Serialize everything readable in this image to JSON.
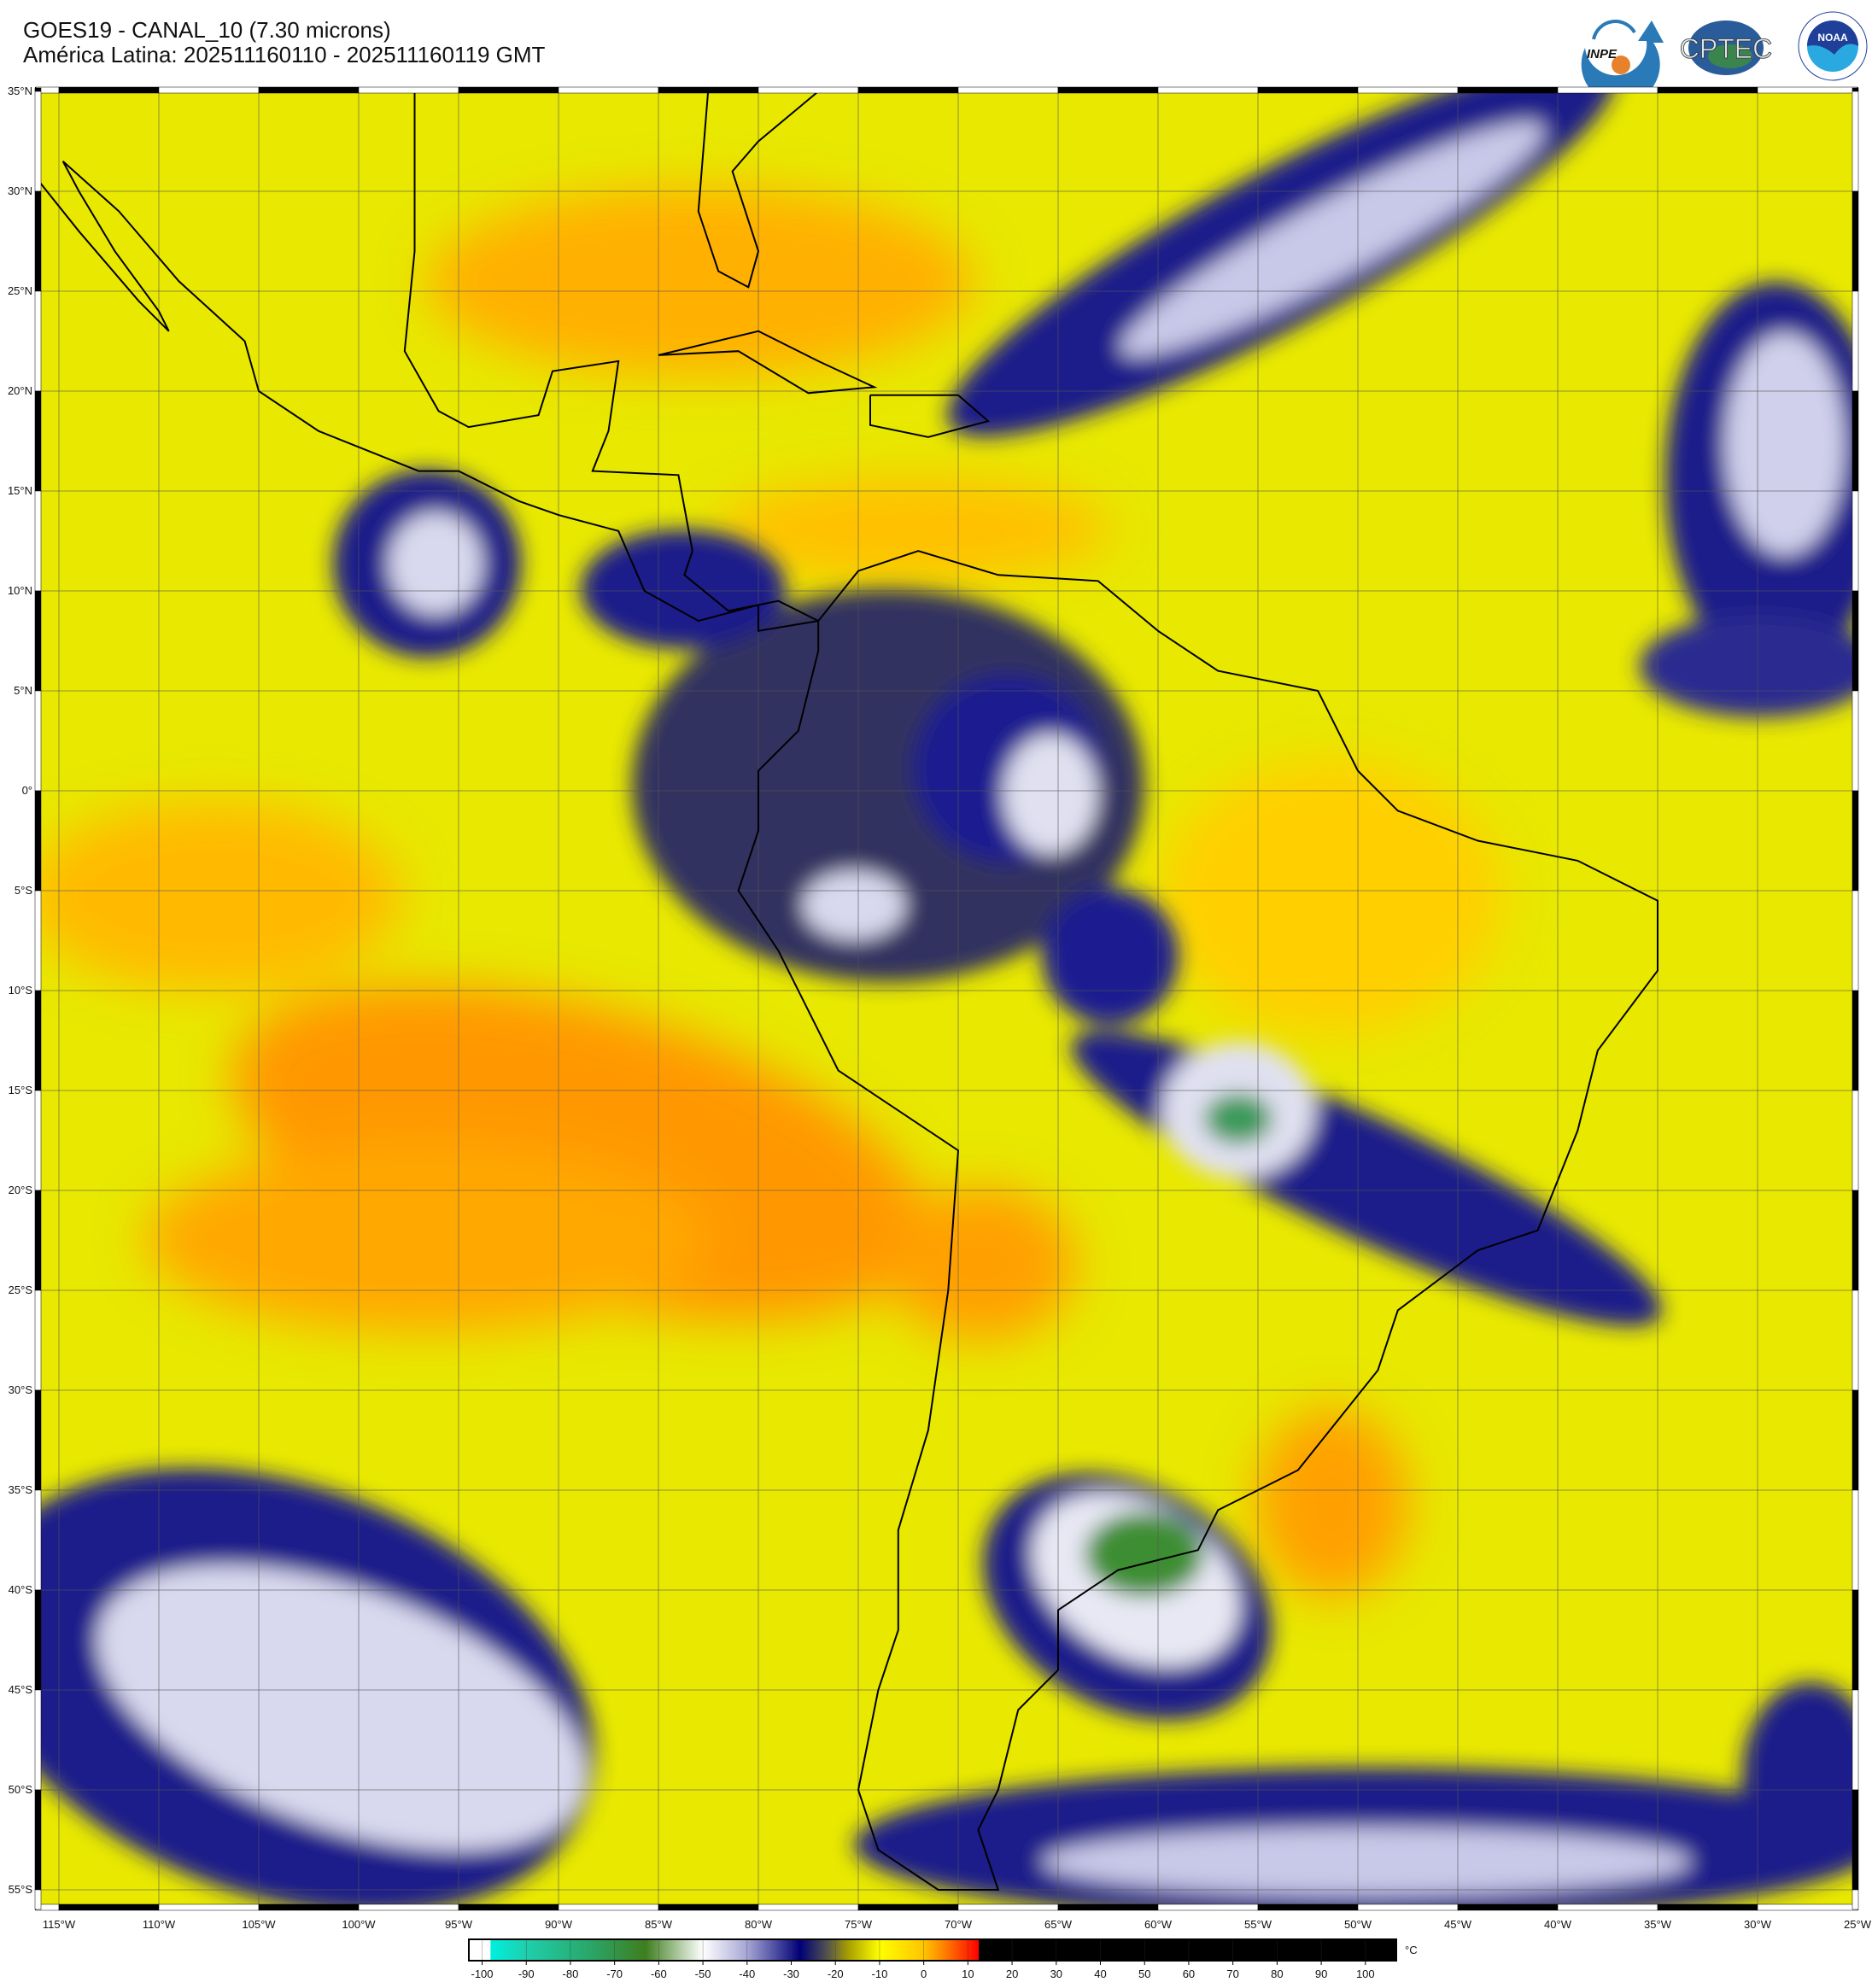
{
  "header": {
    "title": "GOES19 - CANAL_10 (7.30 microns)",
    "subtitle": "América Latina: 202511160110 - 202511160119 GMT"
  },
  "logos": [
    {
      "name": "INPE",
      "text": "INPE",
      "colors": [
        "#2a7ab8",
        "#e8812c"
      ]
    },
    {
      "name": "CPTEC",
      "text": "CPTEC",
      "colors": [
        "#2b5c9a",
        "#3f8f3a"
      ]
    },
    {
      "name": "NOAA",
      "text": "NOAA",
      "ring_text": "NATIONAL OCEANIC AND ATMOSPHERIC ADMINISTRATION · U.S. DEPARTMENT OF COMMERCE",
      "colors": [
        "#1f3f99",
        "#2aa9e0"
      ]
    }
  ],
  "map": {
    "lon_range": [
      -116.15,
      -25
    ],
    "lat_range": [
      -56,
      35.2
    ],
    "grid_step_deg": 5,
    "grid": true,
    "lon_labels": [
      "115°W",
      "110°W",
      "105°W",
      "100°W",
      "95°W",
      "90°W",
      "85°W",
      "80°W",
      "75°W",
      "70°W",
      "65°W",
      "60°W",
      "55°W",
      "50°W",
      "45°W",
      "40°W",
      "35°W",
      "30°W",
      "25°W"
    ],
    "lat_labels": [
      "35°N",
      "30°N",
      "25°N",
      "20°N",
      "15°N",
      "10°N",
      "5°N",
      "0°",
      "5°S",
      "10°S",
      "15°S",
      "20°S",
      "25°S",
      "30°S",
      "35°S",
      "40°S",
      "45°S",
      "50°S",
      "55°S"
    ],
    "base_color": "#e8e800"
  },
  "colorbar": {
    "range": [
      -103,
      107
    ],
    "unit": "°C",
    "ticks": [
      "-100",
      "-90",
      "-80",
      "-70",
      "-60",
      "-50",
      "-40",
      "-30",
      "-20",
      "-10",
      "0",
      "10",
      "20",
      "30",
      "40",
      "50",
      "60",
      "70",
      "80",
      "90",
      "100"
    ],
    "tick_values": [
      -100,
      -90,
      -80,
      -70,
      -60,
      -50,
      -40,
      -30,
      -20,
      -10,
      0,
      10,
      20,
      30,
      40,
      50,
      60,
      70,
      80,
      90,
      100
    ],
    "stops": [
      {
        "v": -103,
        "c": "#ffffff"
      },
      {
        "v": -98.2,
        "c": "#ffffff"
      },
      {
        "v": -98,
        "c": "#00efdf"
      },
      {
        "v": -90,
        "c": "#1fcfac"
      },
      {
        "v": -75,
        "c": "#2aa566"
      },
      {
        "v": -63,
        "c": "#3e7e1e"
      },
      {
        "v": -50,
        "c": "#ffffff"
      },
      {
        "v": -40,
        "c": "#a6a6d4"
      },
      {
        "v": -28,
        "c": "#000078"
      },
      {
        "v": -22,
        "c": "#505050"
      },
      {
        "v": -17,
        "c": "#a8a000"
      },
      {
        "v": -10,
        "c": "#ffff00"
      },
      {
        "v": 0,
        "c": "#ffc400"
      },
      {
        "v": 5,
        "c": "#ff7a00"
      },
      {
        "v": 12.4,
        "c": "#ff0000"
      },
      {
        "v": 12.5,
        "c": "#000000"
      },
      {
        "v": 107,
        "c": "#000000"
      }
    ]
  }
}
